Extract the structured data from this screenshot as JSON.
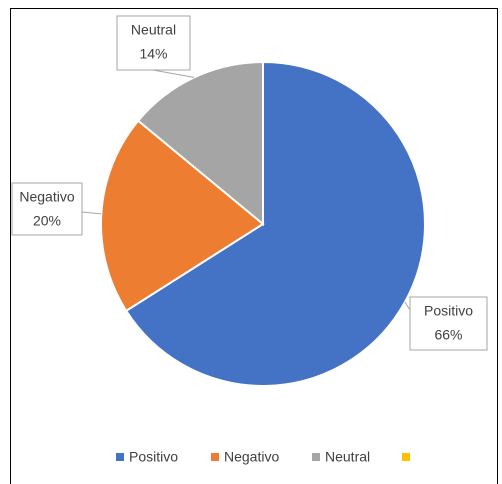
{
  "chart_data": {
    "type": "pie",
    "categories": [
      "Positivo",
      "Negativo",
      "Neutral",
      null
    ],
    "values": [
      66,
      20,
      14,
      0
    ],
    "value_labels": [
      "66%",
      "20%",
      "14%",
      null
    ],
    "colors": [
      "#4472c4",
      "#ed7d31",
      "#a5a5a5",
      "#ffc000"
    ],
    "legend": "bottom"
  }
}
